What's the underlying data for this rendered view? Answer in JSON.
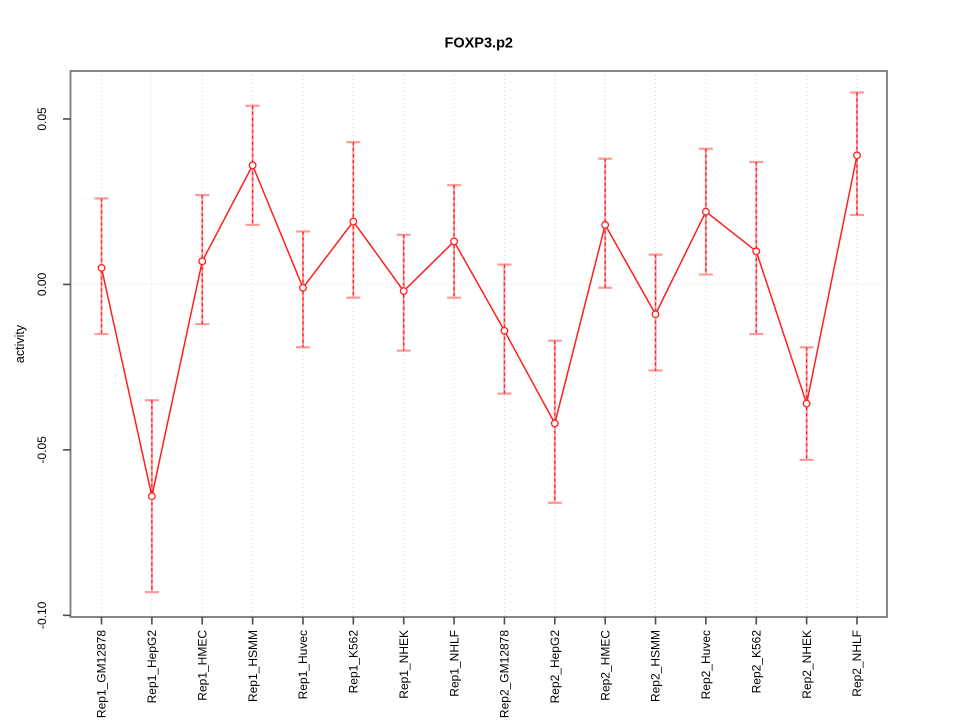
{
  "chart_data": {
    "type": "line",
    "title": "FOXP3.p2",
    "xlabel": "",
    "ylabel": "activity",
    "categories": [
      "Rep1_GM12878",
      "Rep1_HepG2",
      "Rep1_HMEC",
      "Rep1_HSMM",
      "Rep1_Huvec",
      "Rep1_K562",
      "Rep1_NHEK",
      "Rep1_NHLF",
      "Rep2_GM12878",
      "Rep2_HepG2",
      "Rep2_HMEC",
      "Rep2_HSMM",
      "Rep2_Huvec",
      "Rep2_K562",
      "Rep2_NHEK",
      "Rep2_NHLF"
    ],
    "series": [
      {
        "name": "activity",
        "values": [
          0.005,
          -0.064,
          0.007,
          0.036,
          -0.001,
          0.019,
          -0.002,
          0.013,
          -0.014,
          -0.042,
          0.018,
          -0.009,
          0.022,
          0.01,
          -0.036,
          0.039
        ],
        "lower": [
          -0.015,
          -0.093,
          -0.012,
          0.018,
          -0.019,
          -0.004,
          -0.02,
          -0.004,
          -0.033,
          -0.066,
          -0.001,
          -0.026,
          0.003,
          -0.015,
          -0.053,
          0.021
        ],
        "upper": [
          0.026,
          -0.035,
          0.027,
          0.054,
          0.016,
          0.043,
          0.015,
          0.03,
          0.006,
          -0.017,
          0.038,
          0.009,
          0.041,
          0.037,
          -0.019,
          0.058
        ]
      }
    ],
    "ylim": [
      -0.1005,
      0.0645
    ],
    "yticks": [
      0.05,
      0.0,
      -0.05,
      -0.1
    ],
    "ytick_labels": [
      "0.05",
      "0.00",
      "-0.05",
      "-0.10"
    ],
    "grid": "dotted vertical line at each category; dotted horizontal line at zero; no legend",
    "legend": "none",
    "marker": "open-circle",
    "colors": {
      "line": "#ff1f1f",
      "point": "#ff1f1f",
      "errorbar": "#ff9999",
      "errorbar_dash": "#ff1f1f",
      "grid": "#d8d8d8",
      "zero_line": "#e6e6e6",
      "box": "#7a7a7a",
      "tick": "#4d4d4d",
      "text": "#000000",
      "background": "#ffffff"
    }
  }
}
